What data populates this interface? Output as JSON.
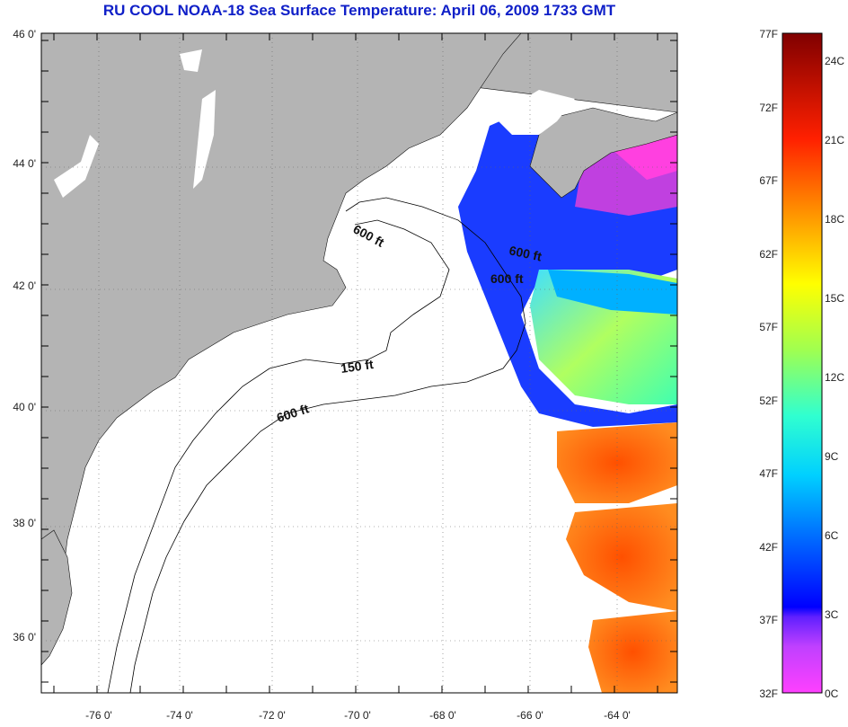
{
  "title": "RU COOL  NOAA-18  Sea Surface Temperature:  April 06, 2009 1733 GMT",
  "axes": {
    "lat_labels": [
      "46 0'",
      "44 0'",
      "42 0'",
      "40 0'",
      "38 0'",
      "36 0'"
    ],
    "lon_labels": [
      "-76 0'",
      "-74 0'",
      "-72 0'",
      "-70 0'",
      "-68 0'",
      "-66 0'",
      "-64 0'"
    ]
  },
  "contours": [
    {
      "label": "600 ft"
    },
    {
      "label": "600 ft"
    },
    {
      "label": "600 ft"
    },
    {
      "label": "150 ft"
    },
    {
      "label": "600 ft"
    }
  ],
  "colorbar": {
    "fahrenheit": [
      "77F",
      "72F",
      "67F",
      "62F",
      "57F",
      "52F",
      "47F",
      "42F",
      "37F",
      "32F"
    ],
    "celsius": [
      "24C",
      "21C",
      "18C",
      "15C",
      "12C",
      "9C",
      "6C",
      "3C",
      "0C"
    ]
  },
  "colors": {
    "land": "#b4b4b4",
    "cloud": "#ffffff",
    "title": "#1020c8"
  }
}
